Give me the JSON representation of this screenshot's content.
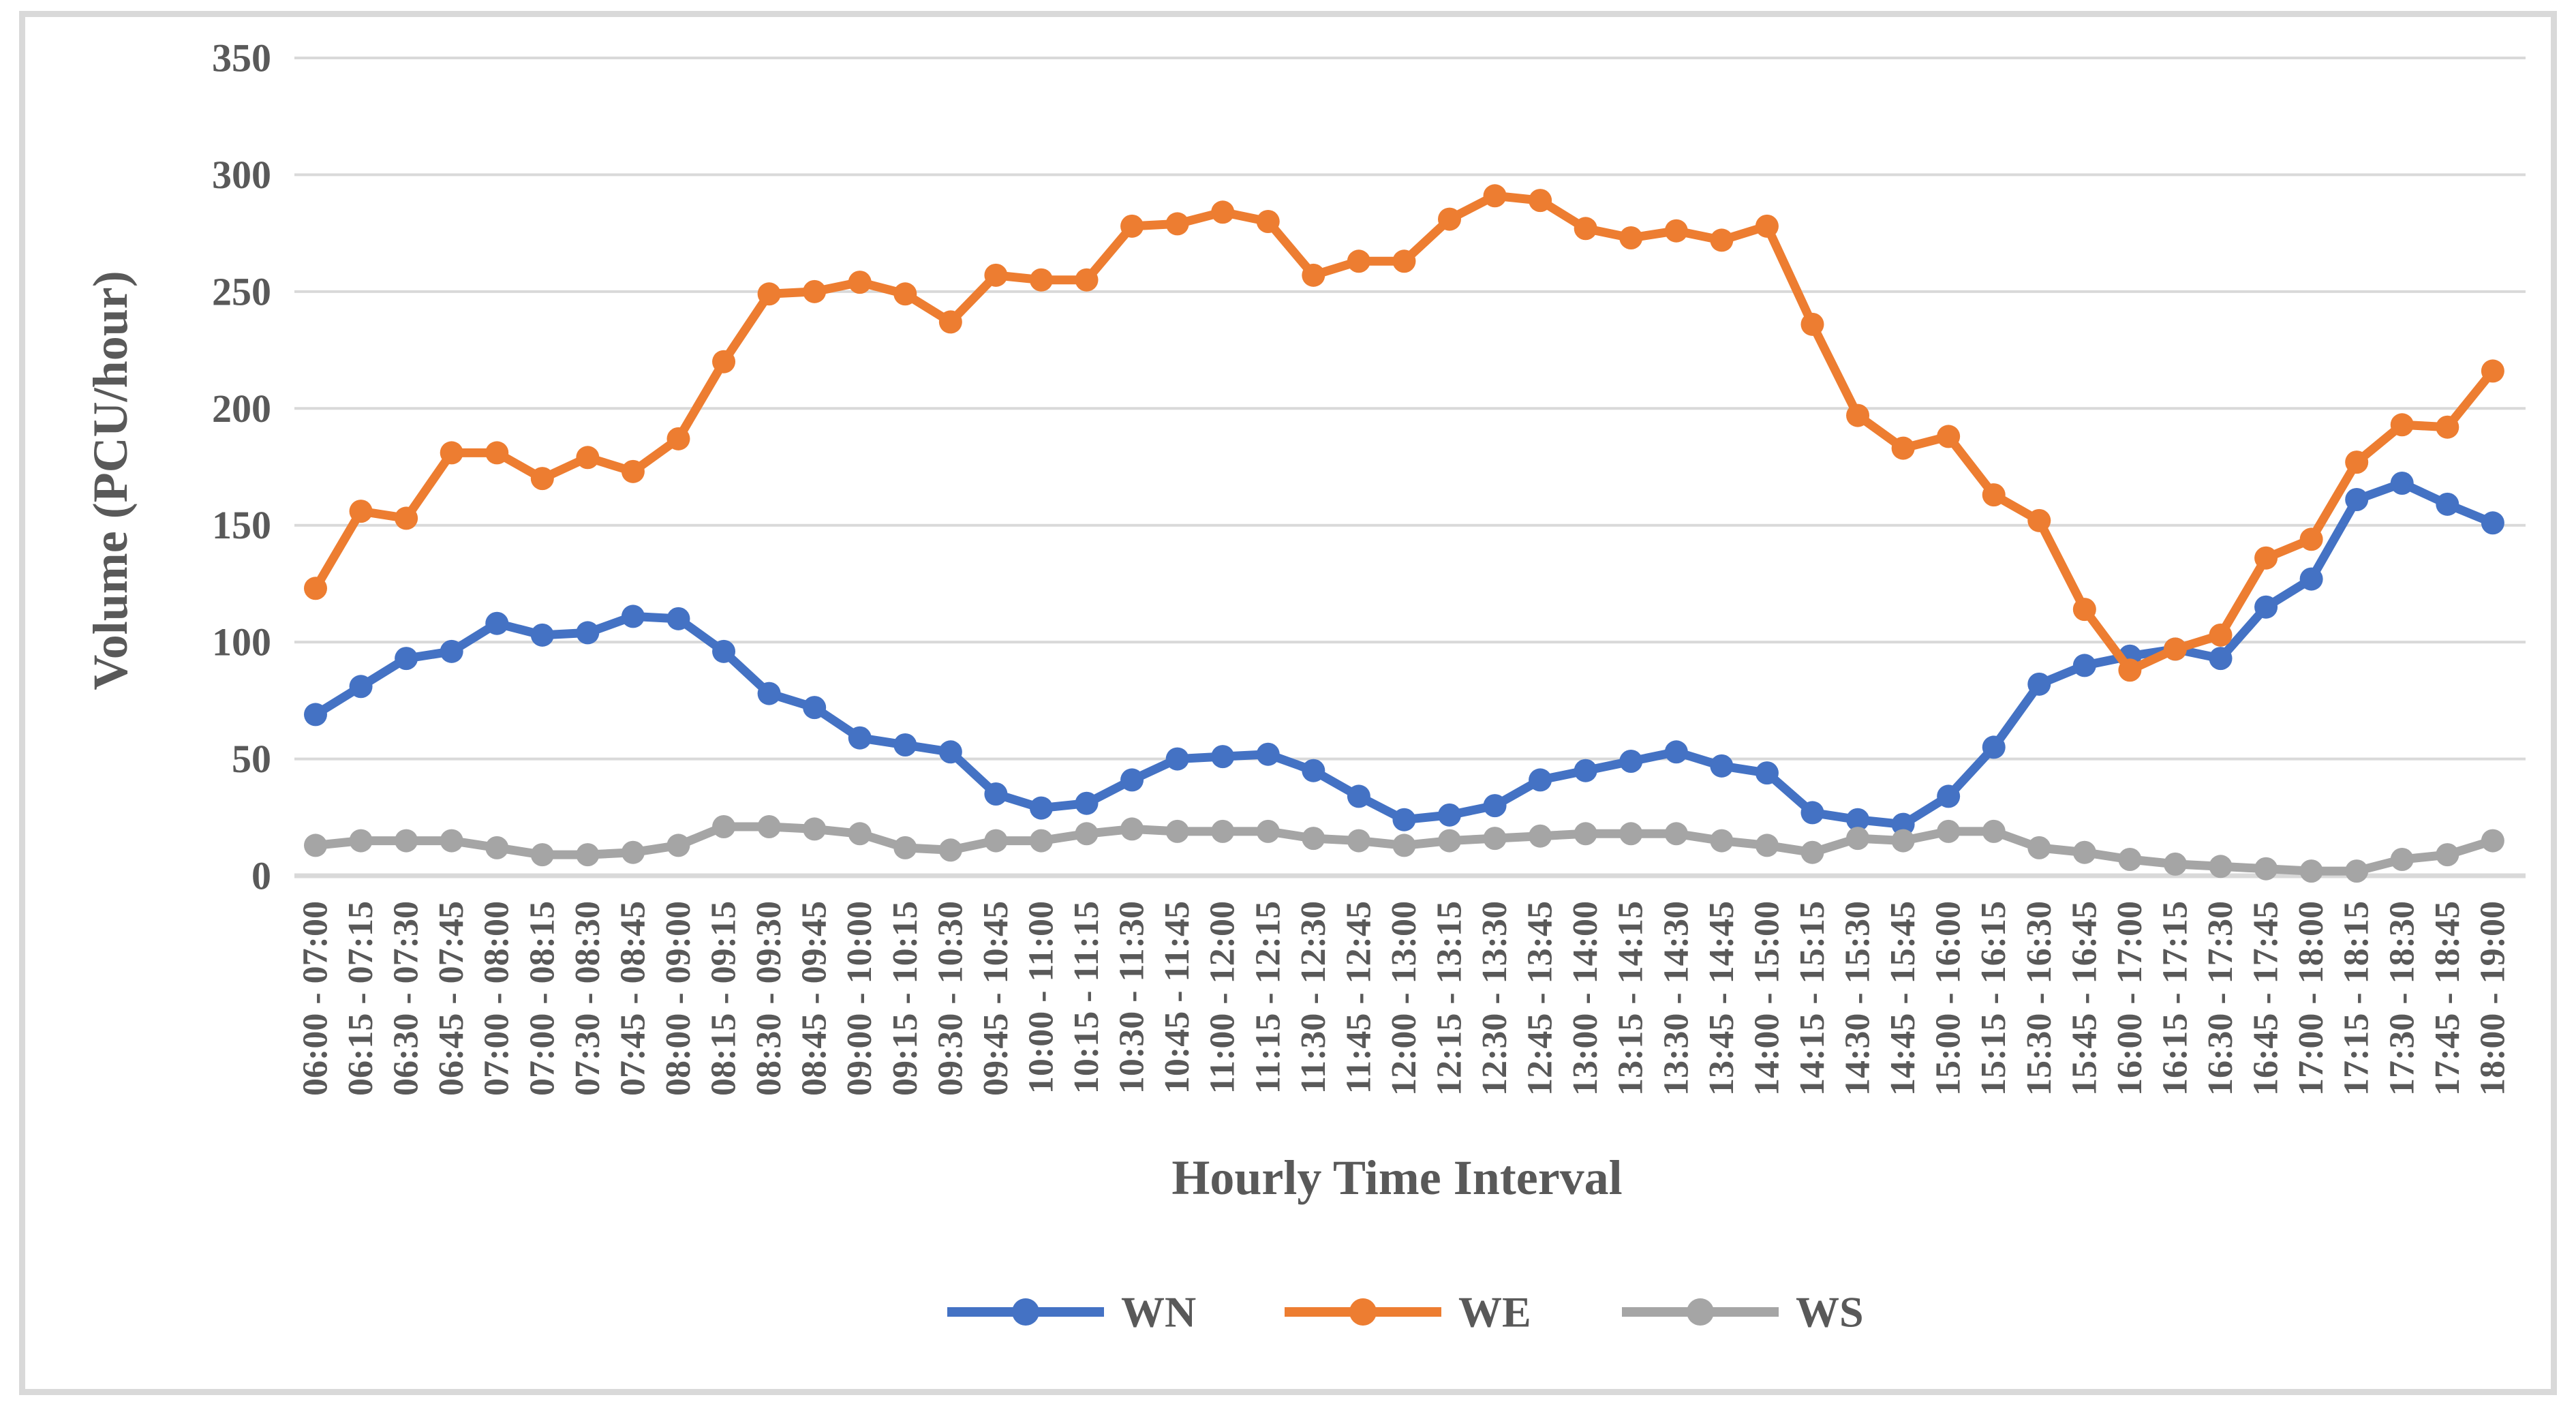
{
  "chart_data": {
    "type": "line",
    "title": "",
    "xlabel": "Hourly Time Interval",
    "ylabel": "Volume (PCU/hour)",
    "ylim": [
      0,
      350
    ],
    "yticks": [
      0,
      50,
      100,
      150,
      200,
      250,
      300,
      350
    ],
    "grid": "horizontal-only",
    "legend_position": "bottom-center",
    "categories": [
      "06:00 - 07:00",
      "06:15 - 07:15",
      "06:30 - 07:30",
      "06:45 - 07:45",
      "07:00 - 08:00",
      "07:00 - 08:15",
      "07:30 - 08:30",
      "07:45 - 08:45",
      "08:00 - 09:00",
      "08:15 - 09:15",
      "08:30 - 09:30",
      "08:45 - 09:45",
      "09:00 - 10:00",
      "09:15 - 10:15",
      "09:30 - 10:30",
      "09:45 - 10:45",
      "10:00 - 11:00",
      "10:15 - 11:15",
      "10:30 - 11:30",
      "10:45 - 11:45",
      "11:00 - 12:00",
      "11:15 - 12:15",
      "11:30 - 12:30",
      "11:45 - 12:45",
      "12:00 - 13:00",
      "12:15 - 13:15",
      "12:30 - 13:30",
      "12:45 - 13:45",
      "13:00 - 14:00",
      "13:15 - 14:15",
      "13:30 - 14:30",
      "13:45 - 14:45",
      "14:00 - 15:00",
      "14:15 - 15:15",
      "14:30 - 15:30",
      "14:45 - 15:45",
      "15:00 - 16:00",
      "15:15 - 16:15",
      "15:30 - 16:30",
      "15:45 - 16:45",
      "16:00 - 17:00",
      "16:15 - 17:15",
      "16:30 - 17:30",
      "16:45 - 17:45",
      "17:00 - 18:00",
      "17:15 - 18:15",
      "17:30 - 18:30",
      "17:45 - 18:45",
      "18:00 - 19:00"
    ],
    "series": [
      {
        "name": "WN",
        "color": "#4472C4",
        "values": [
          69,
          81,
          93,
          96,
          108,
          103,
          104,
          111,
          110,
          96,
          78,
          72,
          59,
          56,
          53,
          35,
          29,
          31,
          41,
          50,
          51,
          52,
          45,
          34,
          24,
          26,
          30,
          41,
          45,
          49,
          53,
          47,
          44,
          27,
          24,
          22,
          34,
          55,
          82,
          90,
          94,
          97,
          93,
          115,
          127,
          161,
          168,
          159,
          151
        ]
      },
      {
        "name": "WE",
        "color": "#ED7D31",
        "values": [
          123,
          156,
          153,
          181,
          181,
          170,
          179,
          173,
          187,
          220,
          249,
          250,
          254,
          249,
          237,
          257,
          255,
          255,
          278,
          279,
          284,
          280,
          257,
          263,
          263,
          281,
          291,
          289,
          277,
          273,
          276,
          272,
          278,
          236,
          197,
          183,
          188,
          163,
          152,
          114,
          88,
          97,
          103,
          136,
          144,
          177,
          193,
          192,
          216
        ]
      },
      {
        "name": "WS",
        "color": "#A5A5A5",
        "values": [
          13,
          15,
          15,
          15,
          12,
          9,
          9,
          10,
          13,
          21,
          21,
          20,
          18,
          12,
          11,
          15,
          15,
          18,
          20,
          19,
          19,
          19,
          16,
          15,
          13,
          15,
          16,
          17,
          18,
          18,
          18,
          15,
          13,
          10,
          16,
          15,
          19,
          19,
          12,
          10,
          7,
          5,
          4,
          3,
          2,
          2,
          7,
          9,
          15
        ]
      }
    ]
  },
  "styles": {
    "background": "#FFFFFF",
    "border_color": "#D9D9D9",
    "grid_color": "#D9D9D9",
    "axis_line_color": "#D9D9D9",
    "text_color": "#595959"
  }
}
